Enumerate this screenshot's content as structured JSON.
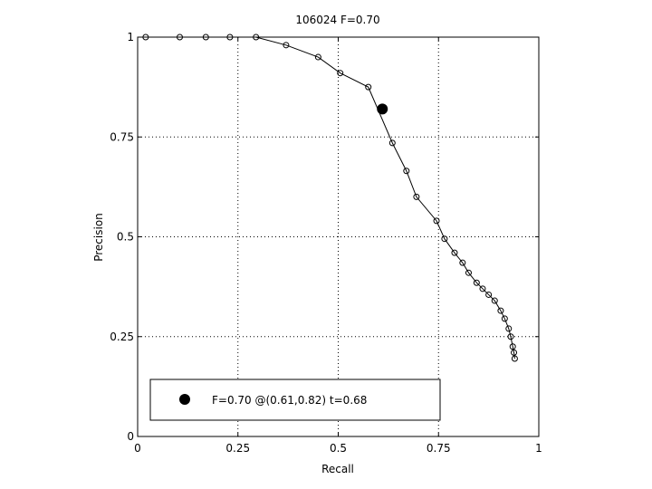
{
  "chart_data": {
    "type": "line",
    "title": "106024 F=0.70",
    "xlabel": "Recall",
    "ylabel": "Precision",
    "xlim": [
      0,
      1
    ],
    "ylim": [
      0,
      1
    ],
    "xticks": [
      0,
      0.25,
      0.5,
      0.75,
      1
    ],
    "yticks": [
      0,
      0.25,
      0.5,
      0.75,
      1
    ],
    "xtick_labels": [
      "0",
      "0.25",
      "0.5",
      "0.75",
      "1"
    ],
    "ytick_labels": [
      "0",
      "0.25",
      "0.5",
      "0.75",
      "1"
    ],
    "grid": true,
    "legend_placement": "bottom-left",
    "series": [
      {
        "marker": "open-circle",
        "x": [
          0.02,
          0.105,
          0.17,
          0.23,
          0.295,
          0.37,
          0.45,
          0.505,
          0.575,
          0.635,
          0.67,
          0.695,
          0.745,
          0.765,
          0.79,
          0.81,
          0.825,
          0.845,
          0.86,
          0.875,
          0.89,
          0.905,
          0.915,
          0.925,
          0.93,
          0.935,
          0.938,
          0.94
        ],
        "y": [
          1.0,
          1.0,
          1.0,
          1.0,
          1.0,
          0.98,
          0.95,
          0.91,
          0.875,
          0.735,
          0.665,
          0.6,
          0.54,
          0.495,
          0.46,
          0.435,
          0.41,
          0.385,
          0.37,
          0.355,
          0.34,
          0.315,
          0.295,
          0.27,
          0.25,
          0.225,
          0.21,
          0.195
        ]
      }
    ],
    "highlight_point": {
      "x": 0.61,
      "y": 0.82,
      "marker": "filled-circle"
    },
    "legend": {
      "text": "F=0.70 @(0.61,0.82) t=0.68"
    }
  }
}
